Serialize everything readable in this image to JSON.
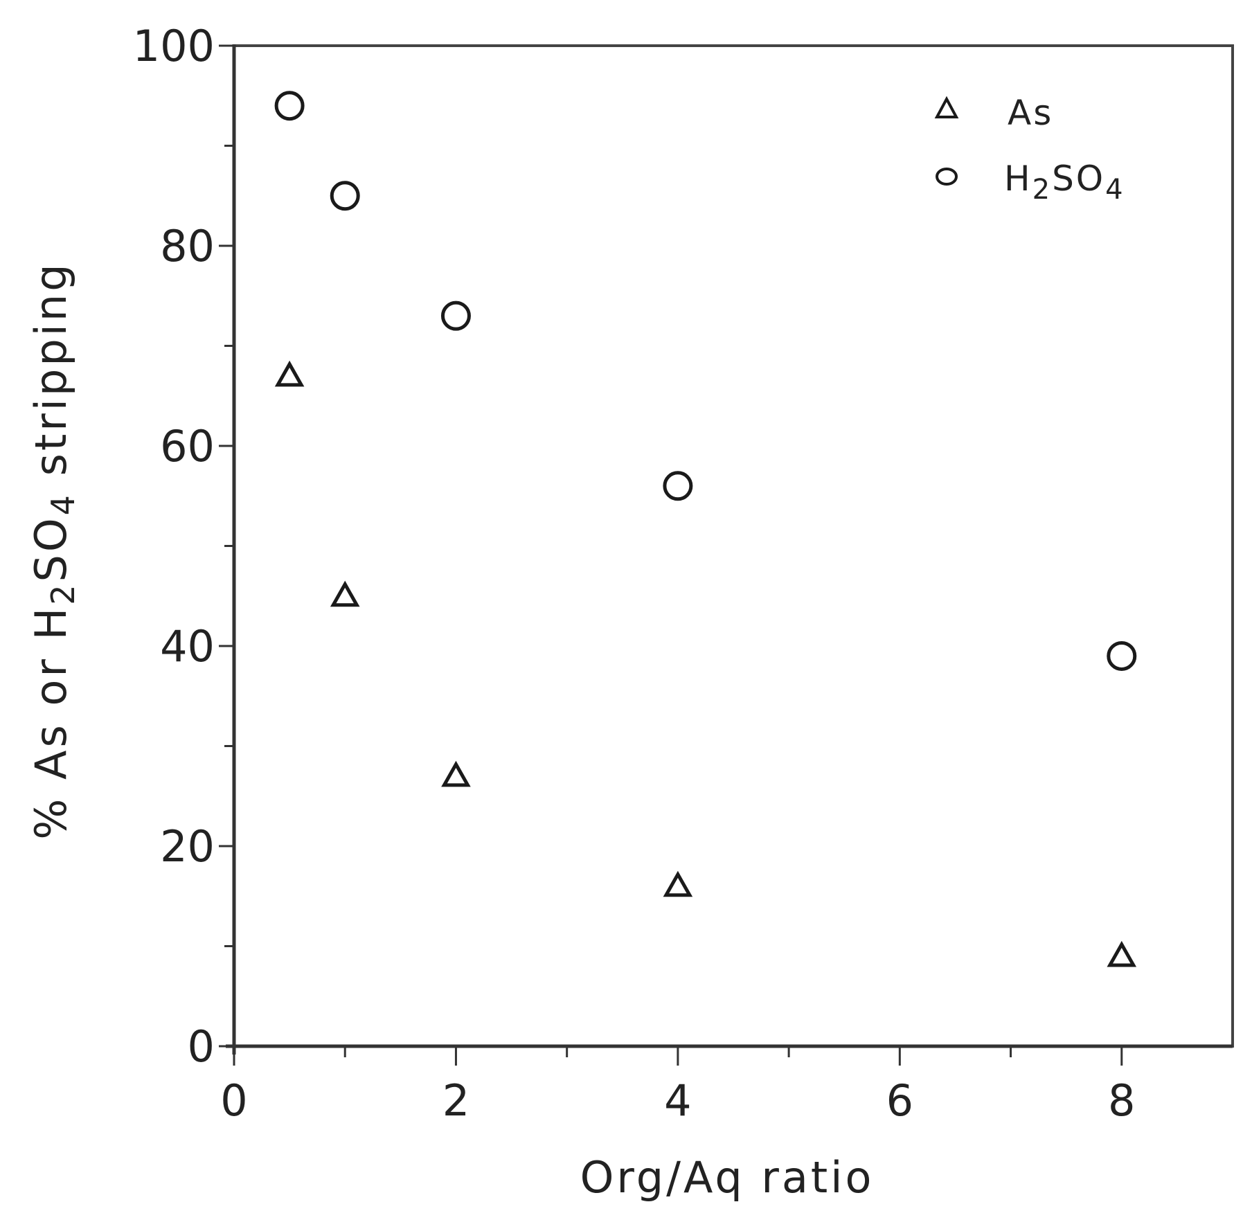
{
  "chart_data": {
    "type": "scatter",
    "title": "",
    "xlabel": "Org/Aq ratio",
    "ylabel": "% As or H2SO4 stripping",
    "ylabel_parts": {
      "pre": "% As or H",
      "sub1": "2",
      "mid": "SO",
      "sub2": "4",
      "post": " stripping"
    },
    "xlim": [
      0,
      9
    ],
    "ylim": [
      0,
      100
    ],
    "x_major_ticks": [
      0,
      2,
      4,
      6,
      8
    ],
    "x_minor_ticks": [
      1,
      3,
      5,
      7
    ],
    "y_major_ticks": [
      0,
      20,
      40,
      60,
      80,
      100
    ],
    "y_minor_ticks": [
      10,
      30,
      50,
      70,
      90
    ],
    "x_tick_labels": [
      "0",
      "2",
      "4",
      "6",
      "8"
    ],
    "y_tick_labels": [
      "0",
      "20",
      "40",
      "60",
      "80",
      "100"
    ],
    "grid": false,
    "legend_position": "upper right",
    "series": [
      {
        "name": "As",
        "marker": "triangle",
        "x": [
          0.5,
          1,
          2,
          4,
          8
        ],
        "y": [
          67,
          45,
          27,
          16,
          9
        ]
      },
      {
        "name": "H2SO4",
        "marker": "circle",
        "x": [
          0.5,
          1,
          2,
          4,
          8
        ],
        "y": [
          94,
          85,
          73,
          56,
          39
        ]
      }
    ]
  },
  "legend": {
    "items": [
      {
        "label_main": "As",
        "marker": "triangle"
      },
      {
        "label_pre": "H",
        "label_sub1": "2",
        "label_mid": "SO",
        "label_sub2": "4",
        "marker": "circle"
      }
    ]
  },
  "colors": {
    "axis": "#333333",
    "marker": "#1a1a1a",
    "text": "#222222",
    "background": "#ffffff"
  }
}
